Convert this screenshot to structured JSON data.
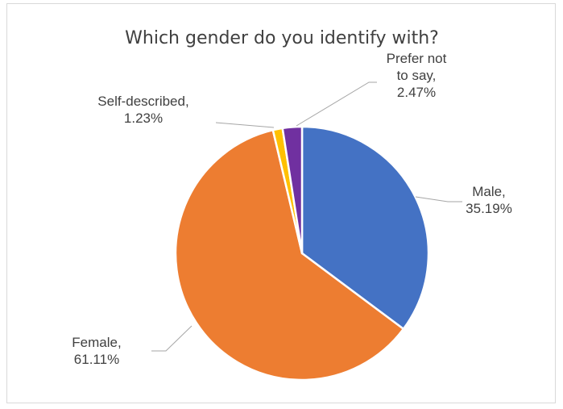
{
  "chart_data": {
    "type": "pie",
    "title": "Which gender do you identify with?",
    "slices": [
      {
        "name": "Male",
        "value": 35.19,
        "label_lines": [
          "Male,",
          "35.19%"
        ],
        "color": "#4472C4"
      },
      {
        "name": "Female",
        "value": 61.11,
        "label_lines": [
          "Female,",
          "61.11%"
        ],
        "color": "#ED7D31"
      },
      {
        "name": "Self-described",
        "value": 1.23,
        "label_lines": [
          "Self-described,",
          "1.23%"
        ],
        "color": "#FFC000"
      },
      {
        "name": "Prefer not to say",
        "value": 2.47,
        "label_lines": [
          "Prefer not",
          "to say,",
          "2.47%"
        ],
        "color": "#7030A0"
      }
    ],
    "start_angle": "12 o'clock",
    "direction": "clockwise",
    "legend": "none",
    "data_labels": "outside with leader lines"
  }
}
